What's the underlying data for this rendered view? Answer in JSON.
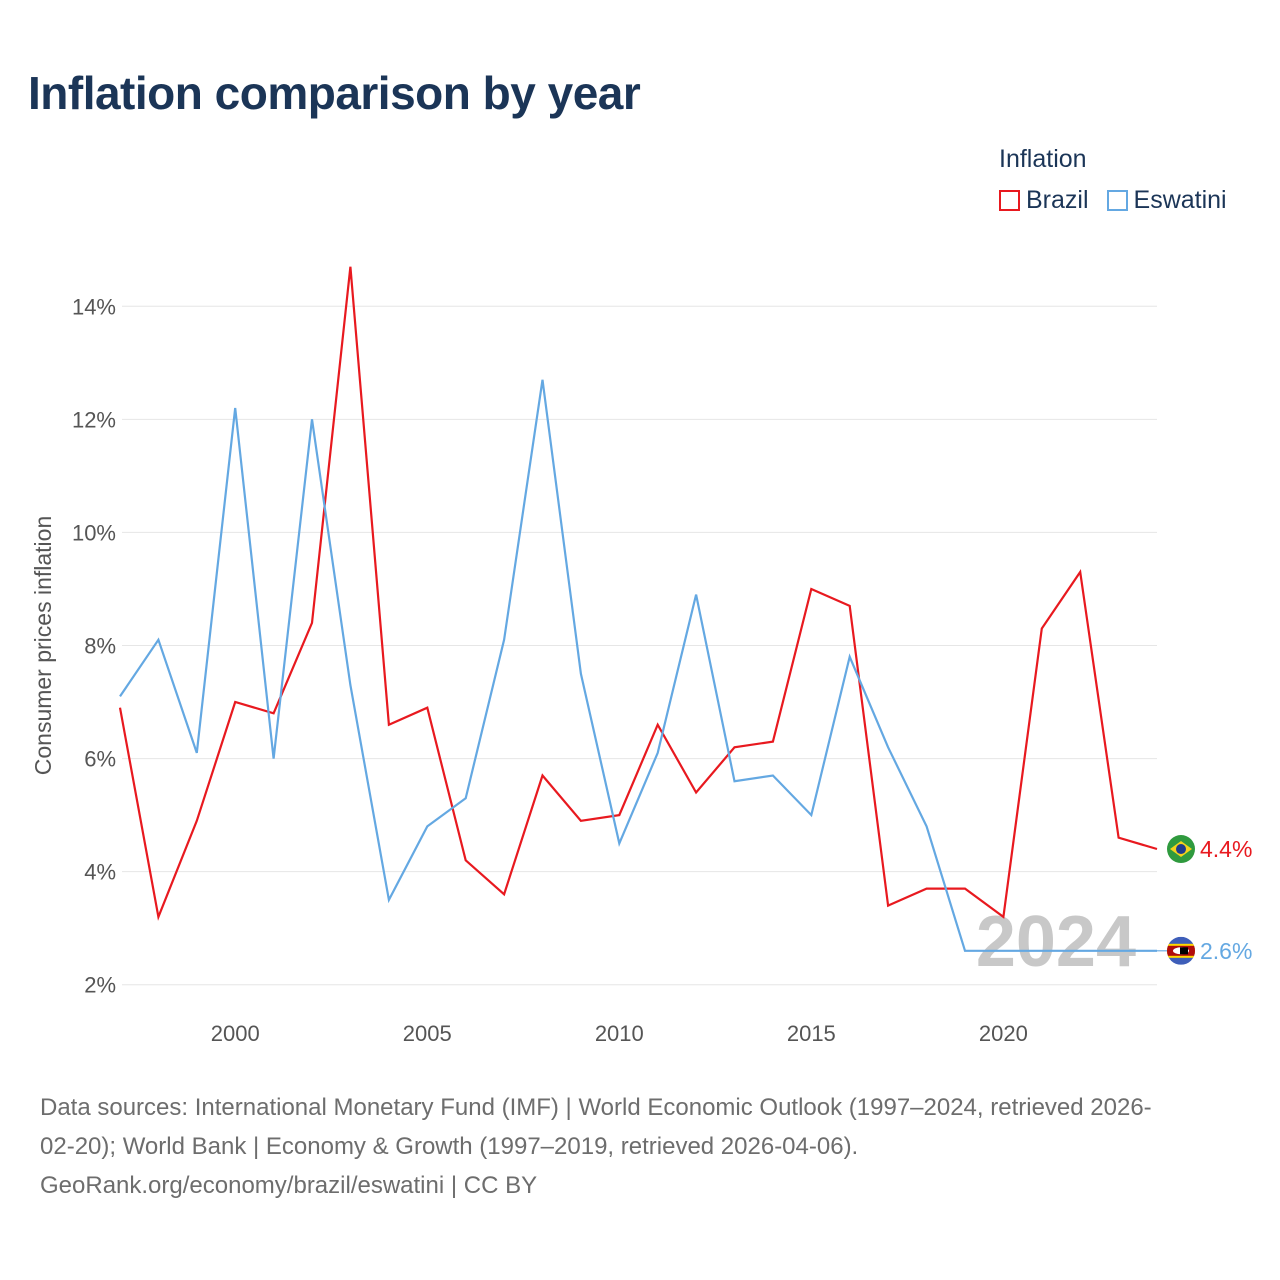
{
  "title": "Inflation comparison by year",
  "legend": {
    "title": "Inflation",
    "items": [
      {
        "label": "Brazil",
        "color": "#e8191f"
      },
      {
        "label": "Eswatini",
        "color": "#64a8e2"
      }
    ]
  },
  "year_label": "2024",
  "end_labels": {
    "brazil": "4.4%",
    "eswatini": "2.6%"
  },
  "sources": {
    "line1": "Data sources: International Monetary Fund (IMF) | World Economic Outlook (1997–2024, retrieved 2026-",
    "line2": "02-20); World Bank | Economy & Growth (1997–2019, retrieved 2026-04-06).",
    "line3": "GeoRank.org/economy/brazil/eswatini | CC BY"
  },
  "chart_data": {
    "type": "line",
    "title": "Inflation comparison by year",
    "xlabel": "",
    "ylabel": "Consumer prices inflation",
    "xlim": [
      1997,
      2024
    ],
    "ylim": [
      1.5,
      14.5
    ],
    "x_ticks": [
      2000,
      2005,
      2010,
      2015,
      2020
    ],
    "y_ticks": [
      2,
      4,
      6,
      8,
      10,
      12,
      14
    ],
    "y_tick_labels": [
      "2%",
      "4%",
      "6%",
      "8%",
      "10%",
      "12%",
      "14%"
    ],
    "grid": true,
    "legend_position": "top-right",
    "series": [
      {
        "name": "Brazil",
        "color": "#e8191f",
        "x": [
          1997,
          1998,
          1999,
          2000,
          2001,
          2002,
          2003,
          2004,
          2005,
          2006,
          2007,
          2008,
          2009,
          2010,
          2011,
          2012,
          2013,
          2014,
          2015,
          2016,
          2017,
          2018,
          2019,
          2020,
          2021,
          2022,
          2023,
          2024
        ],
        "values": [
          6.9,
          3.2,
          4.9,
          7.0,
          6.8,
          8.4,
          14.7,
          6.6,
          6.9,
          4.2,
          3.6,
          5.7,
          4.9,
          5.0,
          6.6,
          5.4,
          6.2,
          6.3,
          9.0,
          8.7,
          3.4,
          3.7,
          3.7,
          3.2,
          8.3,
          9.3,
          4.6,
          4.4
        ]
      },
      {
        "name": "Eswatini",
        "color": "#64a8e2",
        "x": [
          1997,
          1998,
          1999,
          2000,
          2001,
          2002,
          2003,
          2004,
          2005,
          2006,
          2007,
          2008,
          2009,
          2010,
          2011,
          2012,
          2013,
          2014,
          2015,
          2016,
          2017,
          2018,
          2019,
          2020,
          2021,
          2022,
          2023,
          2024
        ],
        "values": [
          7.1,
          8.1,
          6.1,
          12.2,
          6.0,
          12.0,
          7.3,
          3.5,
          4.8,
          5.3,
          8.1,
          12.7,
          7.5,
          4.5,
          6.1,
          8.9,
          5.6,
          5.7,
          5.0,
          7.8,
          6.2,
          4.8,
          2.6,
          2.6,
          2.6,
          2.6,
          2.6,
          2.6
        ]
      }
    ]
  }
}
